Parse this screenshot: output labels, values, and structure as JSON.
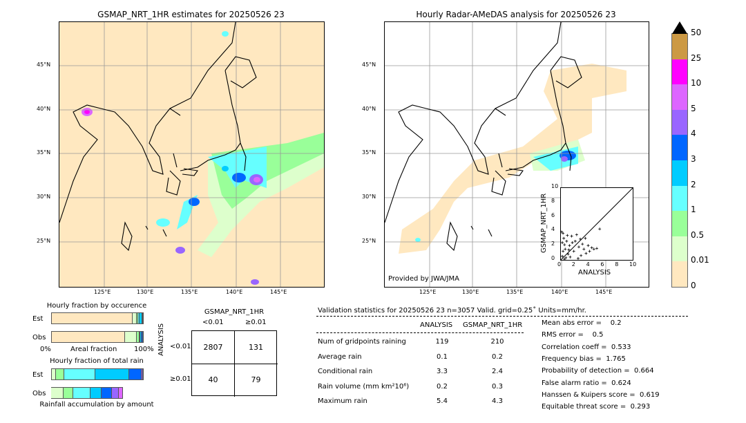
{
  "left_map": {
    "title": "GSMAP_NRT_1HR estimates for 20250526 23"
  },
  "right_map": {
    "title": "Hourly Radar-AMeDAS analysis for 20250526 23",
    "credit": "Provided by JWA/JMA"
  },
  "lat_ticks": [
    "45°N",
    "40°N",
    "35°N",
    "30°N",
    "25°N"
  ],
  "lon_ticks": [
    "125°E",
    "130°E",
    "135°E",
    "140°E",
    "145°E"
  ],
  "colorbar": {
    "labels": [
      "50",
      "25",
      "10",
      "5",
      "4",
      "3",
      "2",
      "1",
      "0.5",
      "0.01",
      "0"
    ],
    "colors": [
      "#cc9944",
      "#ff00ff",
      "#dd66ff",
      "#9966ff",
      "#0066ff",
      "#00ccff",
      "#66ffff",
      "#99ff99",
      "#ddffcc",
      "#ffe8c0"
    ]
  },
  "scatter": {
    "xlabel": "ANALYSIS",
    "ylabel": "GSMAP_NRT_1HR",
    "ticks": [
      "0",
      "2",
      "4",
      "6",
      "8",
      "10"
    ]
  },
  "occurrence": {
    "title": "Hourly fraction by occurence",
    "est_label": "Est",
    "obs_label": "Obs",
    "xmin": "0%",
    "xlabel": "Areal fraction",
    "xmax": "100%"
  },
  "total_rain": {
    "title": "Hourly fraction of total rain",
    "est_label": "Est",
    "obs_label": "Obs",
    "xlabel": "Rainfall accumulation by amount"
  },
  "contingency": {
    "title": "GSMAP_NRT_1HR",
    "col1": "<0.01",
    "col2": "≥0.01",
    "ylabel": "ANALYSIS",
    "row1": "<0.01",
    "row2": "≥0.01",
    "a": "2807",
    "b": "131",
    "c": "40",
    "d": "79"
  },
  "stats": {
    "header": "Validation statistics for 20250526 23  n=3057 Valid. grid=0.25˚ Units=mm/hr.",
    "col_analysis": "ANALYSIS",
    "col_gsmap": "GSMAP_NRT_1HR",
    "rows": [
      {
        "label": "Num of gridpoints raining",
        "analysis": "119",
        "gsmap": "210"
      },
      {
        "label": "Average rain",
        "analysis": "0.1",
        "gsmap": "0.2"
      },
      {
        "label": "Conditional rain",
        "analysis": "3.3",
        "gsmap": "2.4"
      },
      {
        "label": "Rain volume (mm km²10⁶)",
        "analysis": "0.2",
        "gsmap": "0.3"
      },
      {
        "label": "Maximum rain",
        "analysis": "5.4",
        "gsmap": "4.3"
      }
    ],
    "scores": [
      "Mean abs error =    0.2",
      "RMS error =    0.5",
      "Correlation coeff =  0.533",
      "Frequency bias =  1.765",
      "Probability of detection =  0.664",
      "False alarm ratio =  0.624",
      "Hanssen & Kuipers score =  0.619",
      "Equitable threat score =  0.293"
    ]
  },
  "chart_data": {
    "type": "bar",
    "occurrence_percent": {
      "categories": [
        "0",
        "0.01",
        "0.5",
        "1",
        "2",
        "3"
      ],
      "est": [
        88.5,
        4.5,
        2,
        1.5,
        2.5,
        1
      ],
      "obs": [
        80,
        13.5,
        2.5,
        1,
        1.5,
        1.5
      ]
    },
    "total_rain_percent_of_est": {
      "categories": [
        "0.01",
        "0.5",
        "1",
        "2",
        "3",
        "4",
        "5"
      ],
      "est": [
        4.5,
        9,
        34,
        37,
        14,
        1.5,
        0
      ],
      "obs": [
        13.6,
        10.6,
        18.2,
        12.1,
        11.4,
        7.6,
        4.5
      ]
    },
    "scatter_points": [
      [
        0.2,
        0.5
      ],
      [
        0.3,
        1.2
      ],
      [
        0.5,
        2.1
      ],
      [
        0.4,
        3.0
      ],
      [
        0.6,
        1.5
      ],
      [
        0.8,
        2.6
      ],
      [
        1.0,
        0.8
      ],
      [
        1.2,
        2.0
      ],
      [
        1.5,
        3.3
      ],
      [
        1.8,
        1.2
      ],
      [
        2.0,
        2.6
      ],
      [
        2.2,
        3.5
      ],
      [
        2.5,
        1.8
      ],
      [
        2.8,
        0.6
      ],
      [
        3.0,
        2.2
      ],
      [
        3.2,
        1.5
      ],
      [
        3.5,
        0.9
      ],
      [
        3.8,
        2.0
      ],
      [
        4.0,
        1.2
      ],
      [
        4.3,
        1.7
      ],
      [
        4.6,
        1.5
      ],
      [
        5.0,
        1.6
      ],
      [
        5.4,
        4.3
      ],
      [
        0.1,
        3.9
      ],
      [
        0.3,
        3.7
      ],
      [
        0.7,
        0.3
      ],
      [
        0.9,
        3.4
      ],
      [
        1.3,
        0.4
      ],
      [
        1.6,
        2.4
      ],
      [
        2.4,
        0.2
      ],
      [
        0.2,
        2.4
      ],
      [
        0.5,
        0.1
      ],
      [
        1.1,
        1.4
      ],
      [
        2.7,
        2.9
      ],
      [
        3.4,
        3.0
      ]
    ],
    "scatter_range": [
      0,
      10
    ]
  }
}
